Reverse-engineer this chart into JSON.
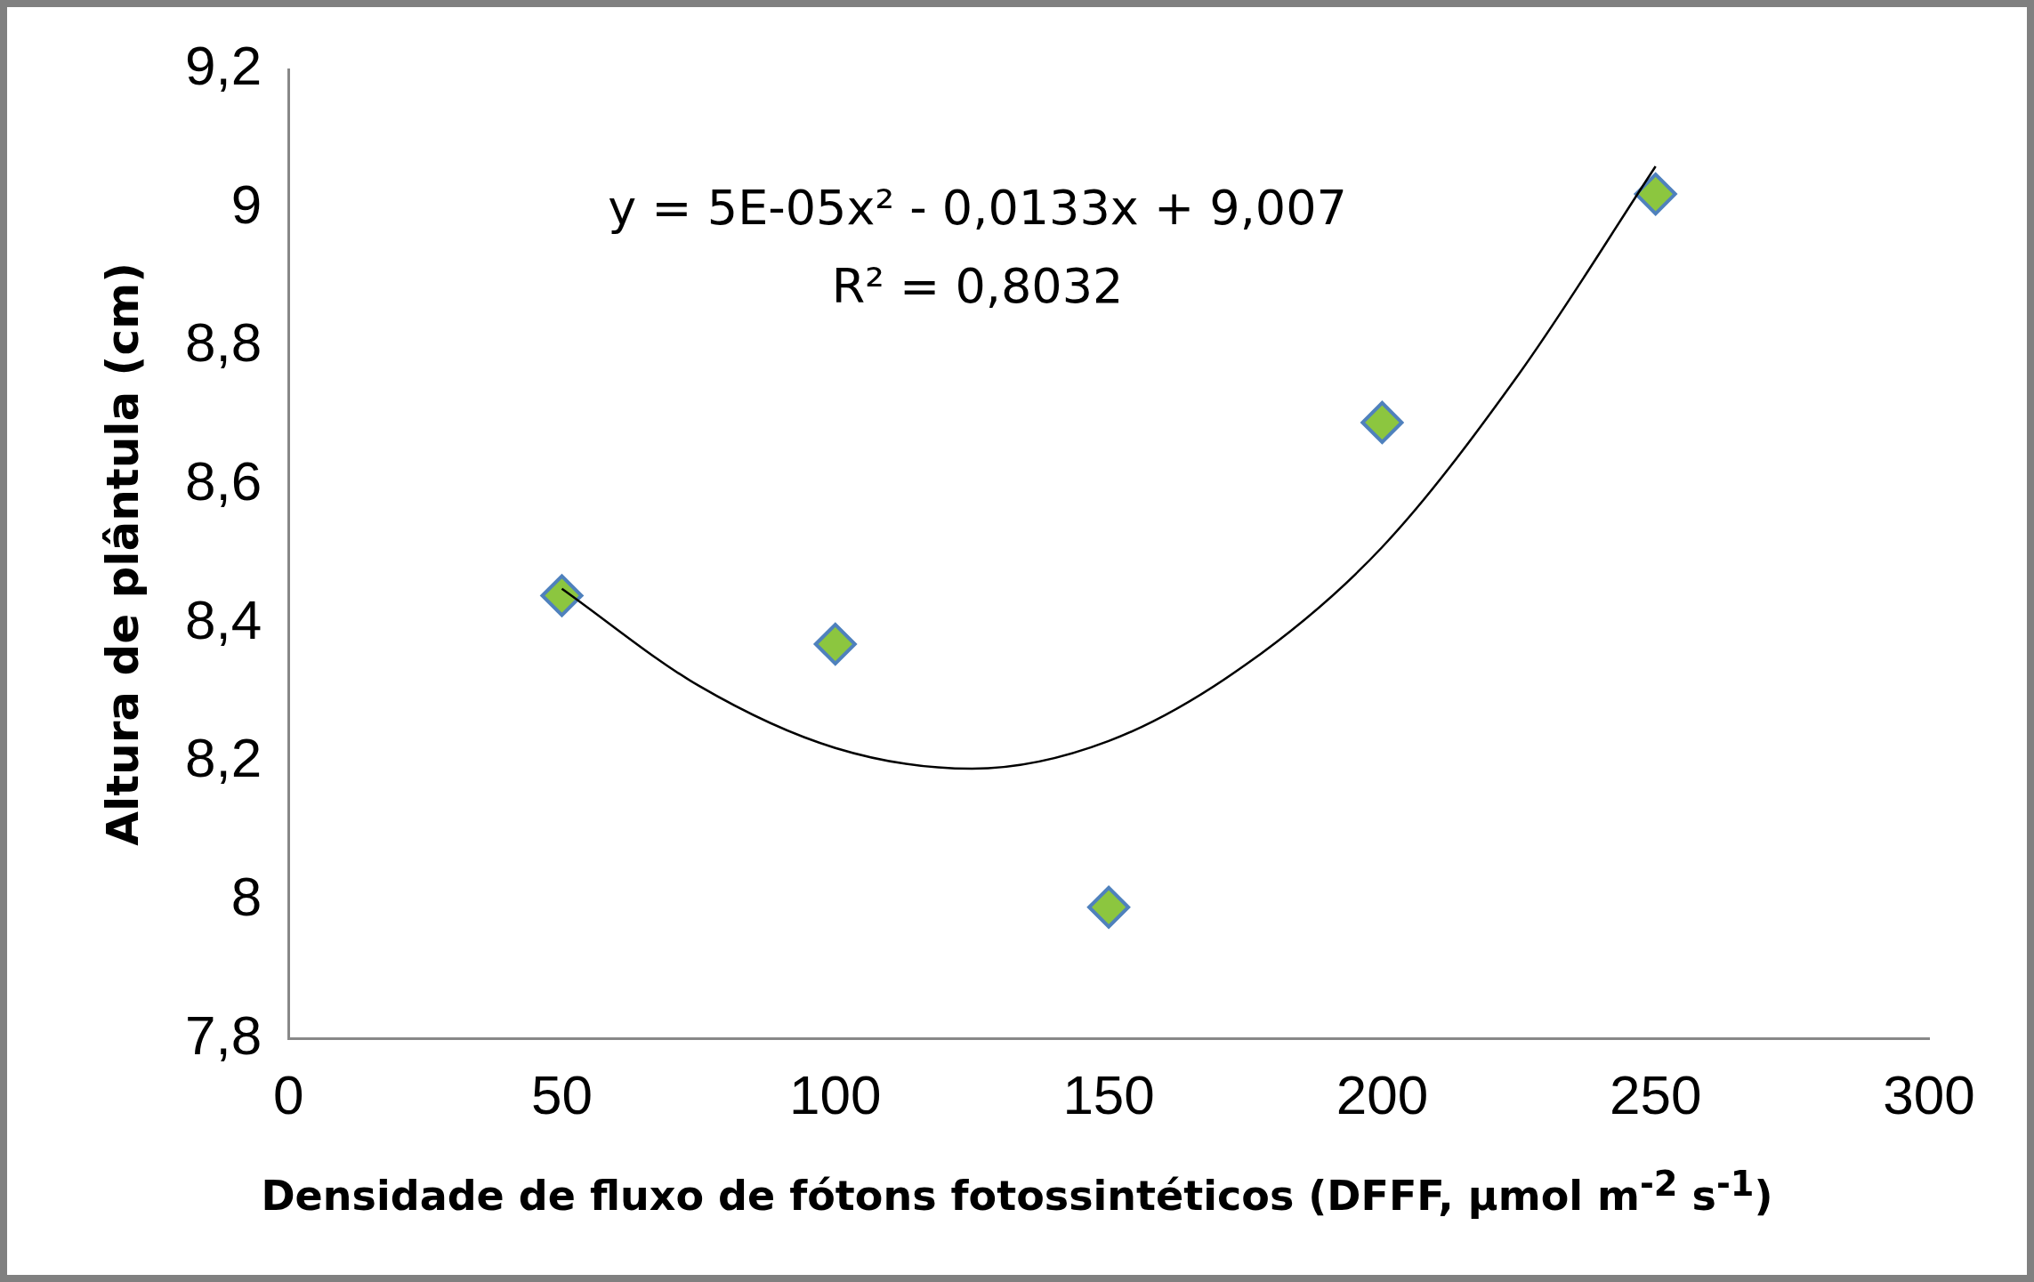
{
  "chart_data": {
    "type": "scatter",
    "xlabel": "Densidade de fluxo de fótons fotossintéticos (DFFF, µmol m$^{-2}$ s$^{-1}$)",
    "ylabel": "Altura de plântula (cm)",
    "annotations": [
      "y = 5E-05x² - 0,0133x + 9,007",
      "R² = 0,8032"
    ],
    "xlim": [
      0,
      300
    ],
    "xticks": [
      0,
      50,
      100,
      150,
      200,
      250,
      300
    ],
    "ylim": [
      7.8,
      9.2
    ],
    "yticks": [
      {
        "value": 7.8,
        "label": "7,8"
      },
      {
        "value": 8,
        "label": "8"
      },
      {
        "value": 8.2,
        "label": "8,2"
      },
      {
        "value": 8.4,
        "label": "8,4"
      },
      {
        "value": 8.6,
        "label": "8,6"
      },
      {
        "value": 8.8,
        "label": "8,8"
      },
      {
        "value": 9,
        "label": "9"
      },
      {
        "value": 9.2,
        "label": "9,2"
      }
    ],
    "grid": false,
    "legend": false,
    "marker": "diamond",
    "series": [
      {
        "type": "scatter",
        "color": "#8cc63f",
        "x": [
          50,
          100,
          150,
          200,
          250
        ],
        "values": [
          8.44,
          8.37,
          7.99,
          8.69,
          9.02
        ]
      },
      {
        "type": "line",
        "color": "#000000",
        "marker": "none",
        "x": [
          50,
          75,
          100,
          125,
          150,
          175,
          200,
          225,
          250
        ],
        "values": [
          8.45,
          8.31,
          8.22,
          8.19,
          8.23,
          8.34,
          8.51,
          8.76,
          9.06
        ]
      }
    ]
  }
}
